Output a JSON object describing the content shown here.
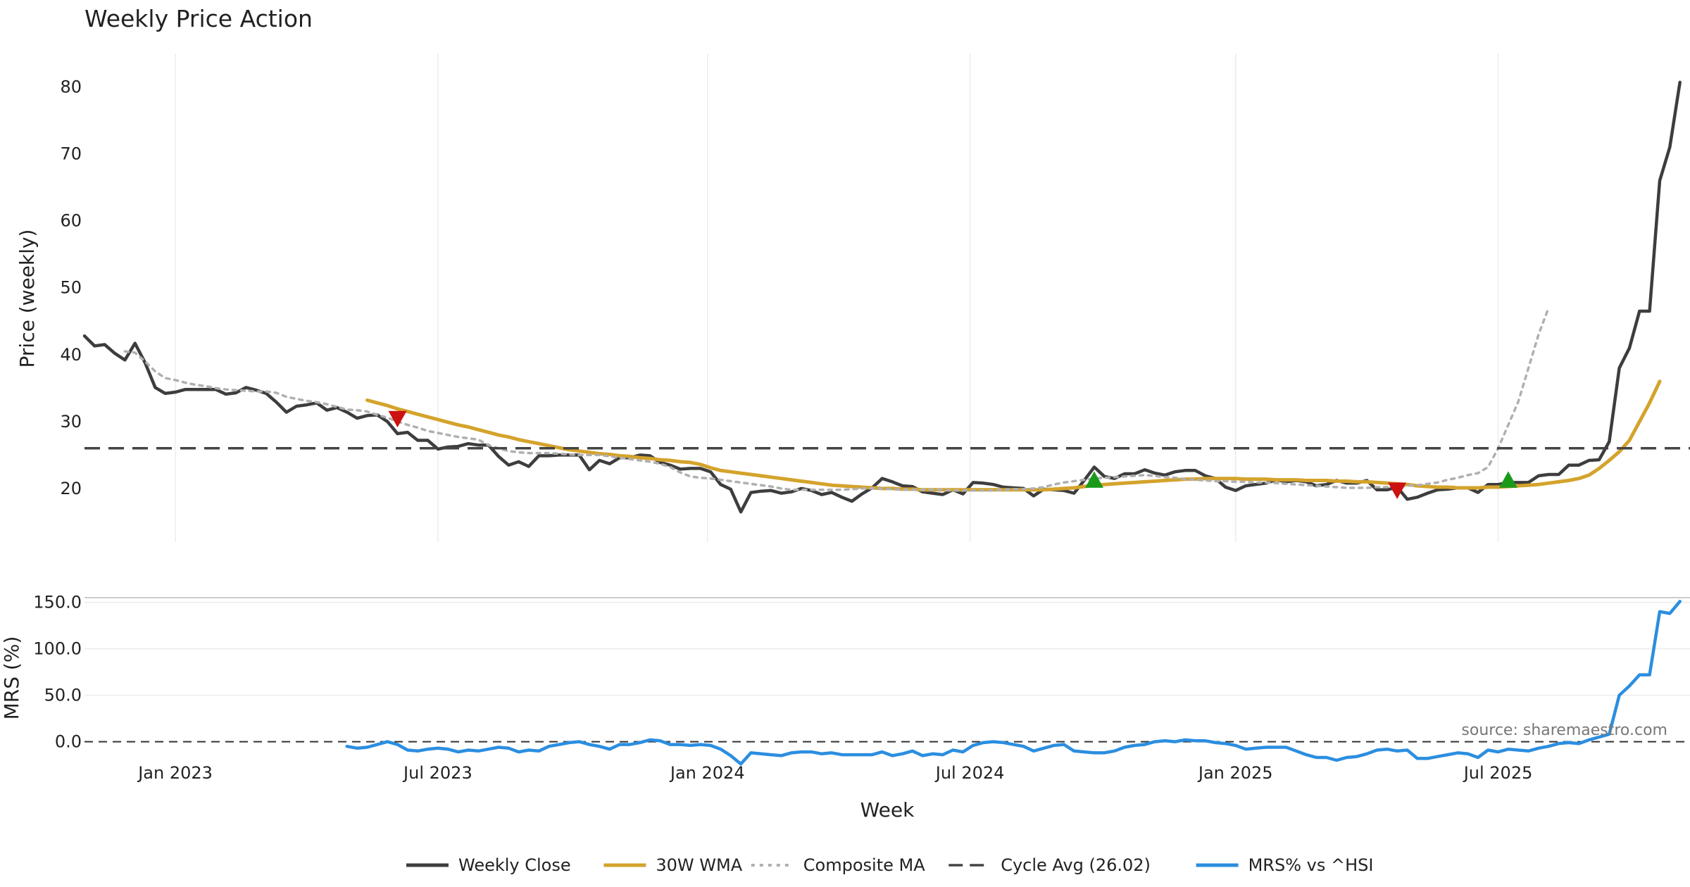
{
  "chart_data": [
    {
      "type": "line",
      "title": "Weekly Price Action",
      "xlabel": "",
      "ylabel": "Price (weekly)",
      "ylim": [
        12,
        85
      ],
      "yticks": [
        20,
        30,
        40,
        50,
        60,
        70,
        80
      ],
      "xticks": [
        {
          "label": "Jan 2023",
          "week": 9
        },
        {
          "label": "Jul 2023",
          "week": 35
        },
        {
          "label": "Jan 2024",
          "week": 61.7
        },
        {
          "label": "Jul 2024",
          "week": 87.7
        },
        {
          "label": "Jan 2025",
          "week": 114
        },
        {
          "label": "Jul 2025",
          "week": 140
        }
      ],
      "x_domain": [
        0,
        159
      ],
      "series": [
        {
          "name": "Weekly Close",
          "color": "#3d3d3d",
          "start_week": 0,
          "values": [
            42.8,
            41.3,
            41.5,
            40.2,
            39.2,
            41.7,
            38.8,
            35.1,
            34.2,
            34.4,
            34.8,
            34.8,
            34.8,
            34.8,
            34.1,
            34.3,
            35.1,
            34.7,
            34.2,
            32.9,
            31.4,
            32.3,
            32.5,
            32.8,
            31.7,
            32.1,
            31.4,
            30.5,
            30.9,
            31,
            30,
            28.2,
            28.4,
            27.2,
            27.2,
            25.9,
            26.2,
            26.3,
            26.7,
            26.5,
            26.5,
            24.8,
            23.5,
            24,
            23.3,
            24.9,
            24.9,
            25,
            25,
            25,
            22.8,
            24.2,
            23.7,
            24.6,
            24.6,
            25,
            24.9,
            23.9,
            23.5,
            22.9,
            23,
            23,
            22.5,
            20.6,
            19.9,
            16.5,
            19.4,
            19.6,
            19.7,
            19.3,
            19.5,
            20,
            19.7,
            19.1,
            19.4,
            18.7,
            18.1,
            19.2,
            20.1,
            21.5,
            21,
            20.4,
            20.3,
            19.5,
            19.3,
            19.1,
            19.8,
            19.2,
            20.9,
            20.8,
            20.6,
            20.2,
            20.1,
            20,
            18.9,
            19.9,
            19.8,
            19.7,
            19.3,
            21.2,
            23.2,
            21.8,
            21.5,
            22.2,
            22.2,
            22.8,
            22.3,
            22,
            22.5,
            22.7,
            22.7,
            21.9,
            21.5,
            20.2,
            19.7,
            20.4,
            20.6,
            20.8,
            21.3,
            21,
            21.2,
            21,
            20.4,
            20.6,
            21.2,
            20.8,
            20.8,
            21.2,
            19.8,
            19.8,
            20.2,
            18.4,
            18.7,
            19.3,
            19.8,
            19.9,
            20.1,
            20.1,
            19.4,
            20.6,
            20.6,
            20.9,
            20.9,
            20.9,
            21.9,
            22.1,
            22.1,
            23.5,
            23.5,
            24.2,
            24.3,
            27,
            38,
            41,
            46.5,
            46.5,
            66,
            71,
            80.7
          ]
        },
        {
          "name": "30W WMA",
          "color": "#d4a32c",
          "start_week": 28,
          "values": [
            33.2,
            32.8,
            32.4,
            31.9,
            31.5,
            31.1,
            30.7,
            30.3,
            29.9,
            29.5,
            29.2,
            28.8,
            28.4,
            28,
            27.7,
            27.3,
            27,
            26.7,
            26.4,
            26.1,
            25.8,
            25.6,
            25.4,
            25.2,
            25.1,
            24.9,
            24.8,
            24.6,
            24.5,
            24.3,
            24.2,
            24,
            23.9,
            23.6,
            23.1,
            22.7,
            22.5,
            22.3,
            22.1,
            21.9,
            21.7,
            21.5,
            21.3,
            21.1,
            20.9,
            20.7,
            20.5,
            20.4,
            20.3,
            20.2,
            20.1,
            20,
            20,
            19.9,
            19.9,
            19.8,
            19.8,
            19.8,
            19.8,
            19.8,
            19.8,
            19.8,
            19.8,
            19.8,
            19.8,
            19.8,
            19.8,
            19.8,
            19.9,
            20,
            20.1,
            20.3,
            20.5,
            20.6,
            20.7,
            20.8,
            20.9,
            21,
            21.1,
            21.2,
            21.3,
            21.4,
            21.4,
            21.5,
            21.5,
            21.5,
            21.5,
            21.4,
            21.4,
            21.4,
            21.3,
            21.3,
            21.3,
            21.2,
            21.2,
            21.2,
            21.1,
            21.1,
            21,
            21,
            20.9,
            20.8,
            20.7,
            20.6,
            20.4,
            20.3,
            20.2,
            20.2,
            20.1,
            20.1,
            20.1,
            20.2,
            20.2,
            20.3,
            20.4,
            20.5,
            20.6,
            20.8,
            21,
            21.2,
            21.5,
            22,
            23,
            24.2,
            25.5,
            27.2,
            30,
            32.8,
            36
          ]
        },
        {
          "name": "Composite MA",
          "color": "#b0b0b0",
          "start_week": 4,
          "values": [
            40.5,
            40.3,
            39,
            37.5,
            36.5,
            36.2,
            35.8,
            35.5,
            35.3,
            35,
            34.8,
            34.7,
            34.6,
            34.5,
            34.5,
            34.3,
            33.7,
            33.4,
            33.1,
            32.9,
            32.6,
            32.2,
            31.8,
            31.7,
            31.5,
            31,
            30.6,
            30,
            29.5,
            29.1,
            28.6,
            28.3,
            28,
            27.7,
            27.5,
            27.3,
            26.5,
            26,
            25.6,
            25.4,
            25.3,
            25.3,
            25.3,
            25.2,
            25.1,
            25,
            25,
            25,
            24.8,
            24.6,
            24.4,
            24.2,
            24,
            23.7,
            23.2,
            22.4,
            21.8,
            21.6,
            21.5,
            21.3,
            21.1,
            20.9,
            20.7,
            20.5,
            20.3,
            20,
            19.8,
            19.8,
            19.8,
            19.8,
            19.8,
            19.8,
            19.9,
            20,
            20,
            20,
            19.9,
            19.8,
            19.8,
            19.8,
            19.8,
            19.8,
            19.7,
            19.7,
            19.7,
            19.7,
            19.7,
            19.8,
            19.9,
            19.9,
            20,
            20.2,
            20.6,
            20.9,
            21.1,
            21.3,
            21.5,
            21.6,
            21.7,
            21.8,
            21.9,
            22,
            21.9,
            21.7,
            21.6,
            21.4,
            21.3,
            21.2,
            21.1,
            21.1,
            21,
            21,
            20.9,
            20.9,
            20.8,
            20.7,
            20.6,
            20.5,
            20.4,
            20.3,
            20.2,
            20.1,
            20.1,
            20.1,
            20.2,
            20.2,
            20.3,
            20.4,
            20.5,
            20.7,
            20.9,
            21.3,
            21.6,
            22,
            22.3,
            23.2,
            26,
            29.5,
            33,
            38,
            43,
            47
          ]
        },
        {
          "name": "Cycle Avg (26.02)",
          "color": "#444444",
          "constant": 26.02
        }
      ],
      "markers": [
        {
          "type": "sell",
          "week": 31,
          "value": 30.5,
          "color": "#cc1111"
        },
        {
          "type": "buy",
          "week": 100,
          "value": 21.2,
          "color": "#1a9a1a"
        },
        {
          "type": "sell",
          "week": 130,
          "value": 19.8,
          "color": "#cc1111"
        },
        {
          "type": "buy",
          "week": 141,
          "value": 21.2,
          "color": "#1a9a1a"
        }
      ],
      "grid": true
    },
    {
      "type": "line",
      "title": "",
      "xlabel": "Week",
      "ylabel": "MRS (%)",
      "ylim": [
        -20,
        155
      ],
      "yticks": [
        "0.0",
        "50.0",
        "100.0",
        "150.0"
      ],
      "series": [
        {
          "name": "MRS% vs ^HSI",
          "color": "#2b8ee0",
          "start_week": 26,
          "values": [
            -5,
            -7,
            -6,
            -3,
            0,
            -3,
            -9,
            -10,
            -8,
            -7,
            -8,
            -11,
            -9,
            -10,
            -8,
            -6,
            -7,
            -11,
            -9,
            -10,
            -5,
            -3,
            -1,
            0,
            -3,
            -5,
            -8,
            -3,
            -3,
            -1,
            2,
            1,
            -3,
            -3,
            -4,
            -3,
            -4,
            -8,
            -15,
            -24,
            -12,
            -13,
            -14,
            -15,
            -12,
            -11,
            -11,
            -13,
            -12,
            -14,
            -14,
            -14,
            -14,
            -11,
            -15,
            -13,
            -10,
            -15,
            -13,
            -14,
            -9,
            -11,
            -4,
            -1,
            0,
            -1,
            -3,
            -5,
            -10,
            -7,
            -4,
            -3,
            -10,
            -11,
            -12,
            -12,
            -10,
            -6,
            -4,
            -3,
            0,
            1,
            0,
            2,
            1,
            1,
            -1,
            -2,
            -4,
            -8,
            -7,
            -6,
            -6,
            -6,
            -10,
            -14,
            -17,
            -17,
            -20,
            -17,
            -16,
            -13,
            -9,
            -8,
            -10,
            -9,
            -18,
            -18,
            -16,
            -14,
            -12,
            -13,
            -17,
            -9,
            -11,
            -8,
            -9,
            -10,
            -7,
            -5,
            -2,
            -1,
            -2,
            2,
            5,
            8,
            50,
            60,
            72,
            72,
            140,
            138,
            151
          ]
        }
      ],
      "reference_line": {
        "value": 0,
        "style": "dashed"
      },
      "grid": true
    }
  ],
  "legend": {
    "position": "bottom-center",
    "items": [
      {
        "label": "Weekly Close",
        "color": "#3d3d3d",
        "style": "solid"
      },
      {
        "label": "30W WMA",
        "color": "#d4a32c",
        "style": "solid"
      },
      {
        "label": "Composite MA",
        "color": "#b0b0b0",
        "style": "dotted"
      },
      {
        "label": "Cycle Avg (26.02)",
        "color": "#444444",
        "style": "dashed"
      },
      {
        "label": "MRS% vs ^HSI",
        "color": "#2b8ee0",
        "style": "solid"
      }
    ]
  },
  "source_note": "source: sharemaestro.com"
}
